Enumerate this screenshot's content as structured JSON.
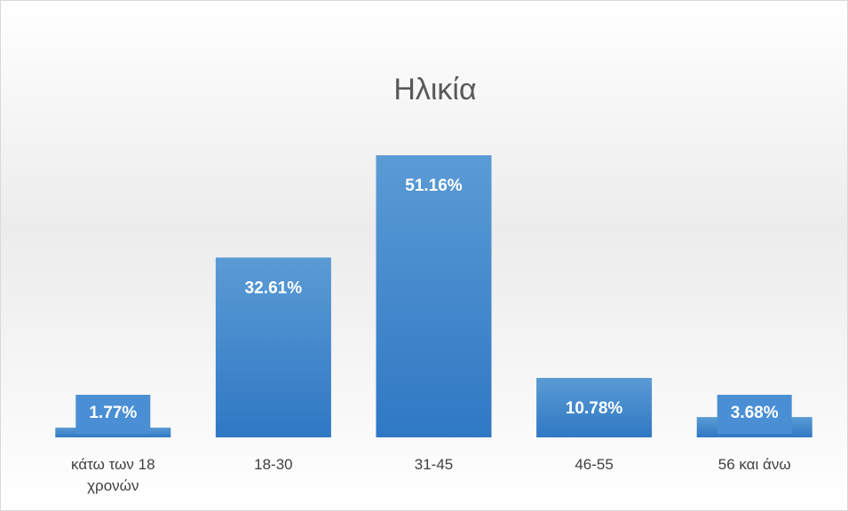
{
  "chart_data": {
    "type": "bar",
    "title": "Ηλικία",
    "categories": [
      "κάτω των 18 χρονών",
      "18-30",
      "31-45",
      "46-55",
      "56 και άνω"
    ],
    "values": [
      1.77,
      32.61,
      51.16,
      10.78,
      3.68
    ],
    "value_labels": [
      "1.77%",
      "32.61%",
      "51.16%",
      "10.78%",
      "3.68%"
    ],
    "color": "#4a8fd4"
  }
}
